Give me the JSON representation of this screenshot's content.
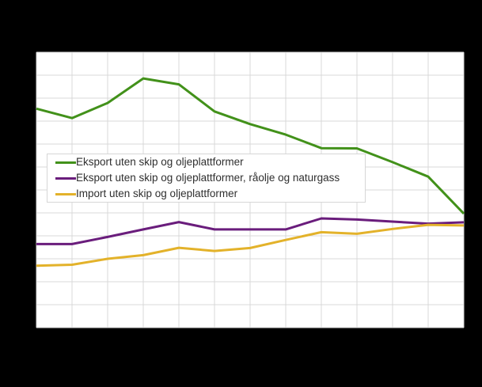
{
  "canvas": {
    "page_background": "#000000",
    "plot_background": "#ffffff",
    "grid_color": "#d9d9d9",
    "axis_labels_visible": false
  },
  "chart_data": {
    "type": "line",
    "x": [
      0,
      1,
      2,
      3,
      4,
      5,
      6,
      7,
      8,
      9,
      10,
      11,
      12
    ],
    "x_tick_labels_visible": false,
    "y_tick_labels_visible": false,
    "y_unit": "grid-units (1 unit = one horizontal gridline step, 0 = bottom axis; numeric axis labels not visible in screenshot)",
    "ylim": [
      0,
      12
    ],
    "grid": {
      "columns": 12,
      "rows": 12,
      "visible": true
    },
    "legend_position": "overlay-middle-left",
    "series": [
      {
        "name": "Eksport uten skip og oljeplattformer",
        "color": "#42911a",
        "values": [
          9.54,
          9.13,
          9.79,
          10.86,
          10.6,
          9.42,
          8.87,
          8.41,
          7.82,
          7.81,
          7.21,
          6.58,
          4.97
        ]
      },
      {
        "name": "Eksport uten skip og oljeplattformer, råolje og naturgass",
        "color": "#6a1d7c",
        "values": [
          3.64,
          3.64,
          3.95,
          4.28,
          4.6,
          4.28,
          4.28,
          4.28,
          4.76,
          4.71,
          4.62,
          4.53,
          4.59
        ]
      },
      {
        "name": "Import uten skip og oljeplattformer",
        "color": "#e3b22a",
        "values": [
          2.7,
          2.74,
          3.0,
          3.16,
          3.48,
          3.34,
          3.47,
          3.82,
          4.16,
          4.09,
          4.3,
          4.48,
          4.45
        ]
      }
    ]
  }
}
